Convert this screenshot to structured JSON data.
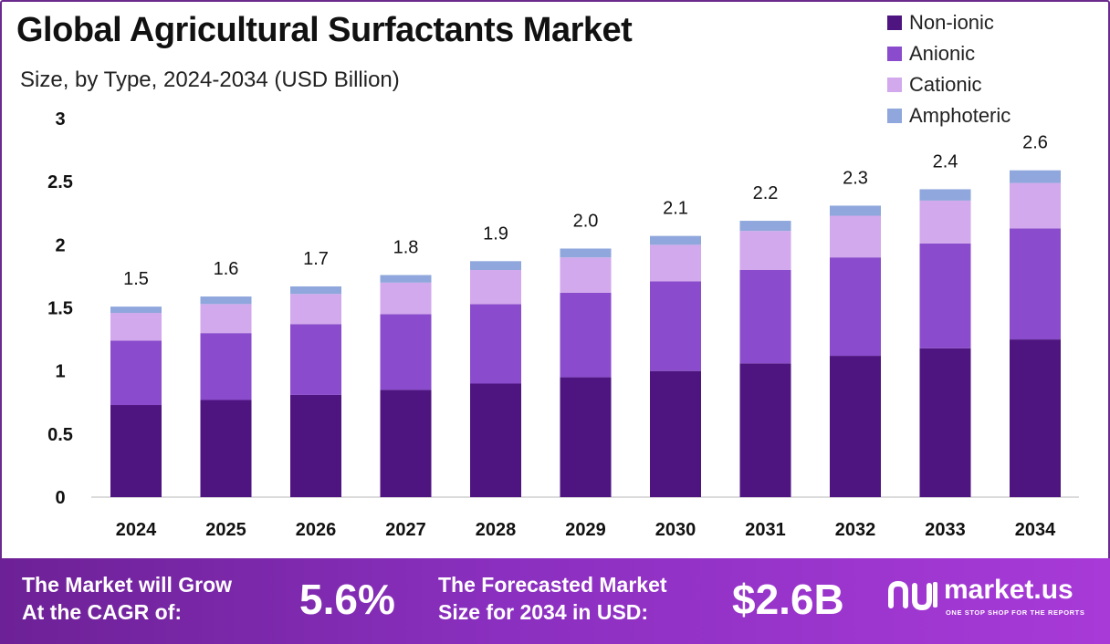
{
  "header": {
    "title": "Global Agricultural Surfactants Market",
    "subtitle": "Size, by Type, 2024-2034 (USD Billion)"
  },
  "colors": {
    "non_ionic": "#4e1580",
    "anionic": "#8a4ccc",
    "cationic": "#d2a9ec",
    "amphoteric": "#8fa7dc",
    "footer_start": "#6d2196",
    "footer_end": "#a83ad8"
  },
  "chart_data": {
    "type": "bar",
    "stacked": true,
    "categories": [
      "2024",
      "2025",
      "2026",
      "2027",
      "2028",
      "2029",
      "2030",
      "2031",
      "2032",
      "2033",
      "2034"
    ],
    "series": [
      {
        "name": "Non-ionic",
        "values": [
          0.73,
          0.77,
          0.81,
          0.85,
          0.9,
          0.95,
          1.0,
          1.06,
          1.12,
          1.18,
          1.25
        ]
      },
      {
        "name": "Anionic",
        "values": [
          0.51,
          0.53,
          0.56,
          0.6,
          0.63,
          0.67,
          0.71,
          0.74,
          0.78,
          0.83,
          0.88
        ]
      },
      {
        "name": "Cationic",
        "values": [
          0.22,
          0.23,
          0.24,
          0.25,
          0.27,
          0.28,
          0.29,
          0.31,
          0.33,
          0.34,
          0.36
        ]
      },
      {
        "name": "Amphoteric",
        "values": [
          0.05,
          0.06,
          0.06,
          0.06,
          0.07,
          0.07,
          0.07,
          0.08,
          0.08,
          0.09,
          0.1
        ]
      }
    ],
    "totals": [
      "1.5",
      "1.6",
      "1.7",
      "1.8",
      "1.9",
      "2.0",
      "2.1",
      "2.2",
      "2.3",
      "2.4",
      "2.6"
    ],
    "ylim": [
      0,
      3
    ],
    "yticks": [
      "0",
      "0.5",
      "1",
      "1.5",
      "2",
      "2.5",
      "3"
    ],
    "grid": false,
    "legend_position": "top-right"
  },
  "footer": {
    "cagr_line1": "The Market will Grow",
    "cagr_line2": "At the CAGR of:",
    "cagr_value": "5.6%",
    "forecast_line1": "The Forecasted Market",
    "forecast_line2": "Size for 2034 in USD:",
    "forecast_value": "$2.6B",
    "brand_name": "market.us",
    "brand_tagline": "ONE STOP SHOP FOR THE REPORTS"
  }
}
